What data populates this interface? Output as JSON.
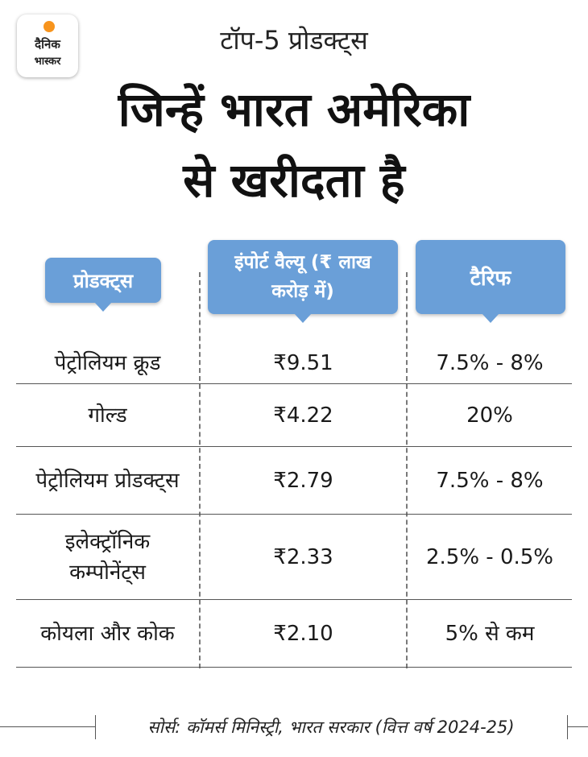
{
  "logo": {
    "line1": "दैनिक",
    "line2": "भास्कर"
  },
  "header": {
    "subtitle": "टॉप-5 प्रोडक्ट्स",
    "title_line1": "जिन्हें भारत अमेरिका",
    "title_line2": "से खरीदता है"
  },
  "table": {
    "headers": {
      "products": "प्रोडक्ट्स",
      "import_value": "इंपोर्ट वैल्यू (₹ लाख करोड़ में)",
      "tariff": "टैरिफ"
    },
    "rows": [
      {
        "product": "पेट्रोलियम क्रूड",
        "value": "₹9.51",
        "tariff": "7.5% - 8%"
      },
      {
        "product": "गोल्ड",
        "value": "₹4.22",
        "tariff": "20%"
      },
      {
        "product": "पेट्रोलियम प्रोडक्ट्स",
        "value": "₹2.79",
        "tariff": "7.5% - 8%"
      },
      {
        "product": "इलेक्ट्रॉनिक कम्पोनेंट्स",
        "value": "₹2.33",
        "tariff": "2.5% - 0.5%"
      },
      {
        "product": "कोयला और कोक",
        "value": "₹2.10",
        "tariff": "5% से कम"
      }
    ]
  },
  "source": "सोर्स: कॉमर्स मिनिस्ट्री, भारत सरकार (वित्त वर्ष 2024-25)",
  "colors": {
    "header_pill": "#6a9fd8",
    "logo_dot": "#f7941d"
  }
}
